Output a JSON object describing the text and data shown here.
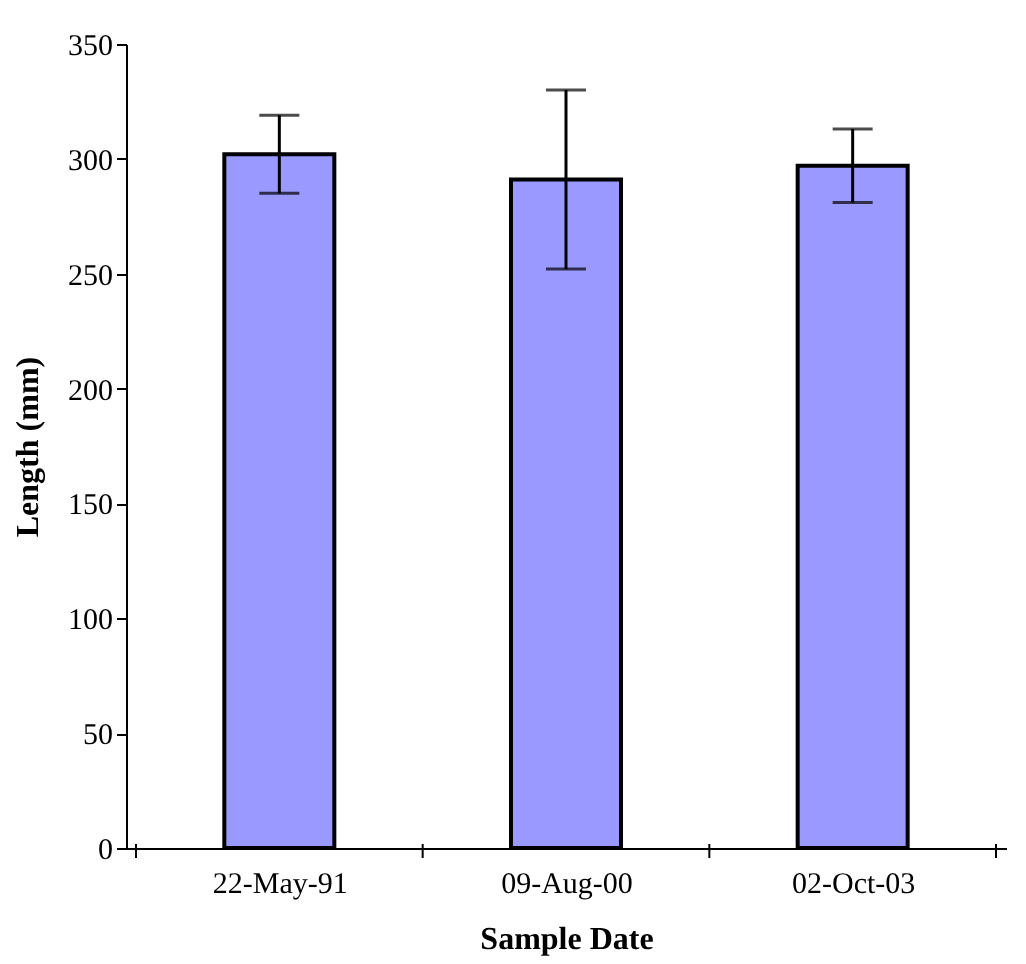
{
  "chart_data": {
    "type": "bar",
    "xlabel": "Sample Date",
    "ylabel": "Length (mm)",
    "categories": [
      "22-May-91",
      "09-Aug-00",
      "02-Oct-03"
    ],
    "series": [
      {
        "color": "#9999ff",
        "values": [
          302,
          291,
          297
        ],
        "errors": [
          17,
          39,
          16
        ]
      }
    ],
    "ylim": [
      0,
      350
    ],
    "yticks": [
      0,
      50,
      100,
      150,
      200,
      250,
      300,
      350
    ],
    "grid": false
  }
}
